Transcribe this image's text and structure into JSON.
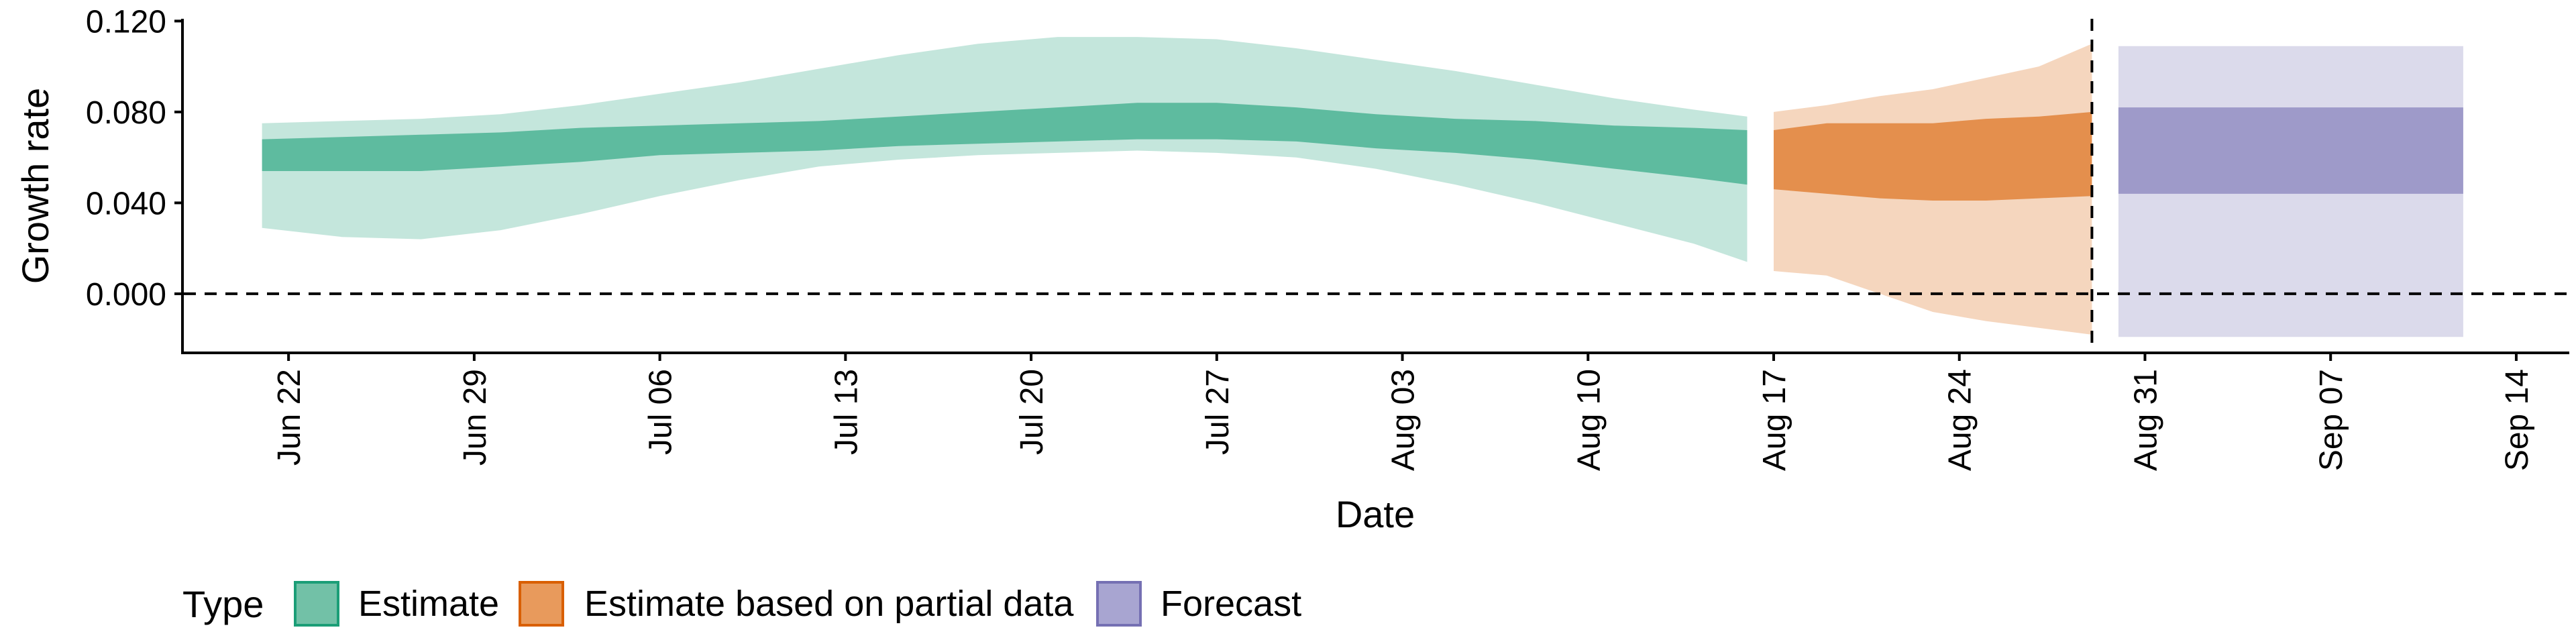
{
  "chart_data": {
    "type": "area",
    "title": "",
    "xlabel": "Date",
    "ylabel": "Growth rate",
    "ylim": [
      -0.026,
      0.121
    ],
    "y_ticks": [
      "0.000",
      "0.040",
      "0.080",
      "0.120"
    ],
    "y_tick_values": [
      0.0,
      0.04,
      0.08,
      0.12
    ],
    "x_ticks": [
      "Jun 22",
      "Jun 29",
      "Jul 06",
      "Jul 13",
      "Jul 20",
      "Jul 27",
      "Aug 03",
      "Aug 10",
      "Aug 17",
      "Aug 24",
      "Aug 31",
      "Sep 07",
      "Sep 14"
    ],
    "x_tick_dates": [
      "2020-06-22",
      "2020-06-29",
      "2020-07-06",
      "2020-07-13",
      "2020-07-20",
      "2020-07-27",
      "2020-08-03",
      "2020-08-10",
      "2020-08-17",
      "2020-08-24",
      "2020-08-31",
      "2020-09-07",
      "2020-09-14"
    ],
    "xlim": [
      "2020-06-18",
      "2020-09-16"
    ],
    "reference_lines": {
      "horizontal_y": 0.0,
      "vertical_date": "2020-08-29"
    },
    "grid": false,
    "legend": {
      "title": "Type",
      "position": "bottom-left"
    },
    "series": [
      {
        "name": "Estimate",
        "color": "#1b9e77",
        "dates": [
          "2020-06-21",
          "2020-06-24",
          "2020-06-27",
          "2020-06-30",
          "2020-07-03",
          "2020-07-06",
          "2020-07-09",
          "2020-07-12",
          "2020-07-15",
          "2020-07-18",
          "2020-07-21",
          "2020-07-24",
          "2020-07-27",
          "2020-07-30",
          "2020-08-02",
          "2020-08-05",
          "2020-08-08",
          "2020-08-11",
          "2020-08-14",
          "2020-08-16"
        ],
        "outer_lower": [
          0.029,
          0.025,
          0.024,
          0.028,
          0.035,
          0.043,
          0.05,
          0.056,
          0.059,
          0.061,
          0.062,
          0.063,
          0.062,
          0.06,
          0.055,
          0.048,
          0.04,
          0.031,
          0.022,
          0.014
        ],
        "inner_lower": [
          0.054,
          0.054,
          0.054,
          0.056,
          0.058,
          0.061,
          0.062,
          0.063,
          0.065,
          0.066,
          0.067,
          0.068,
          0.068,
          0.067,
          0.064,
          0.062,
          0.059,
          0.055,
          0.051,
          0.048
        ],
        "inner_upper": [
          0.068,
          0.069,
          0.07,
          0.071,
          0.073,
          0.074,
          0.075,
          0.076,
          0.078,
          0.08,
          0.082,
          0.084,
          0.084,
          0.082,
          0.079,
          0.077,
          0.076,
          0.074,
          0.073,
          0.072
        ],
        "outer_upper": [
          0.075,
          0.076,
          0.077,
          0.079,
          0.083,
          0.088,
          0.093,
          0.099,
          0.105,
          0.11,
          0.113,
          0.113,
          0.112,
          0.108,
          0.103,
          0.098,
          0.092,
          0.086,
          0.081,
          0.078
        ]
      },
      {
        "name": "Estimate based on partial data",
        "color": "#d95f02",
        "dates": [
          "2020-08-17",
          "2020-08-19",
          "2020-08-21",
          "2020-08-23",
          "2020-08-25",
          "2020-08-27",
          "2020-08-29"
        ],
        "outer_lower": [
          0.01,
          0.008,
          0.0,
          -0.008,
          -0.012,
          -0.015,
          -0.018
        ],
        "inner_lower": [
          0.046,
          0.044,
          0.042,
          0.041,
          0.041,
          0.042,
          0.043
        ],
        "inner_upper": [
          0.072,
          0.075,
          0.075,
          0.075,
          0.077,
          0.078,
          0.08
        ],
        "outer_upper": [
          0.08,
          0.083,
          0.087,
          0.09,
          0.095,
          0.1,
          0.11
        ]
      },
      {
        "name": "Forecast",
        "color": "#7570b3",
        "dates": [
          "2020-08-30",
          "2020-09-12"
        ],
        "outer_lower": [
          -0.019,
          -0.019
        ],
        "inner_lower": [
          0.044,
          0.044
        ],
        "inner_upper": [
          0.082,
          0.082
        ],
        "outer_upper": [
          0.109,
          0.109
        ]
      }
    ]
  }
}
